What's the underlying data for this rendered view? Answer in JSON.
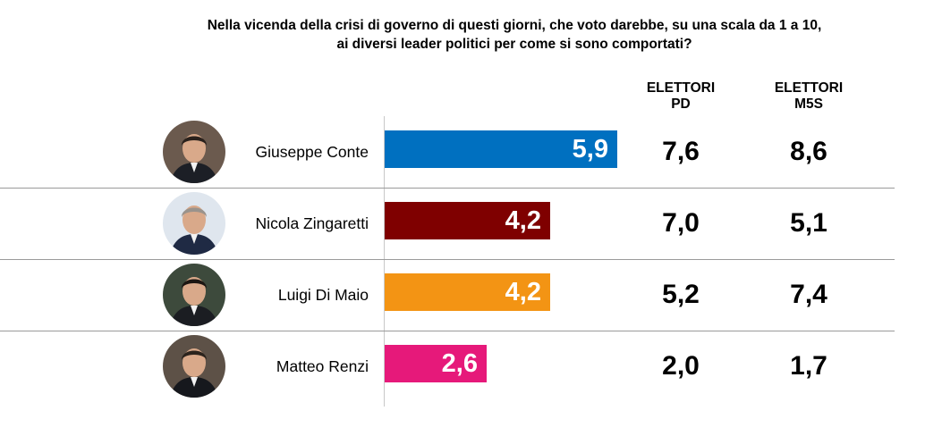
{
  "title": {
    "line1": "Nella vicenda della crisi di governo di questi giorni, che voto darebbe, su una scala da 1 a 10,",
    "line2": "ai diversi leader politici per come si sono comportati?"
  },
  "columns": {
    "pd": {
      "line1": "ELETTORI",
      "line2": "PD"
    },
    "m5s": {
      "line1": "ELETTORI",
      "line2": "M5S"
    }
  },
  "rows": [
    {
      "name": "Giuseppe Conte",
      "score": "5,9",
      "pd": "7,6",
      "m5s": "8,6",
      "color": "#0070c0",
      "avatar_icon": "portrait-photo-icon"
    },
    {
      "name": "Nicola Zingaretti",
      "score": "4,2",
      "pd": "7,0",
      "m5s": "5,1",
      "color": "#7f0000",
      "avatar_icon": "portrait-photo-icon"
    },
    {
      "name": "Luigi Di Maio",
      "score": "4,2",
      "pd": "5,2",
      "m5s": "7,4",
      "color": "#f39414",
      "avatar_icon": "portrait-photo-icon"
    },
    {
      "name": "Matteo Renzi",
      "score": "2,6",
      "pd": "2,0",
      "m5s": "1,7",
      "color": "#e6197a",
      "avatar_icon": "portrait-photo-icon"
    }
  ],
  "chart_data": {
    "type": "bar",
    "orientation": "horizontal",
    "title": "Nella vicenda della crisi di governo di questi giorni, che voto darebbe, su una scala da 1 a 10, ai diversi leader politici per come si sono comportati?",
    "categories": [
      "Giuseppe Conte",
      "Nicola Zingaretti",
      "Luigi Di Maio",
      "Matteo Renzi"
    ],
    "values": [
      5.9,
      4.2,
      4.2,
      2.6
    ],
    "data_labels": [
      "5,9",
      "4,2",
      "4,2",
      "2,6"
    ],
    "bar_colors": [
      "#0070c0",
      "#7f0000",
      "#f39414",
      "#e6197a"
    ],
    "xlim": [
      0,
      10
    ],
    "grid": false,
    "table_columns": [
      {
        "header": "ELETTORI PD",
        "values": [
          7.6,
          7.0,
          5.2,
          2.0
        ]
      },
      {
        "header": "ELETTORI M5S",
        "values": [
          8.6,
          5.1,
          7.4,
          1.7
        ]
      }
    ]
  }
}
